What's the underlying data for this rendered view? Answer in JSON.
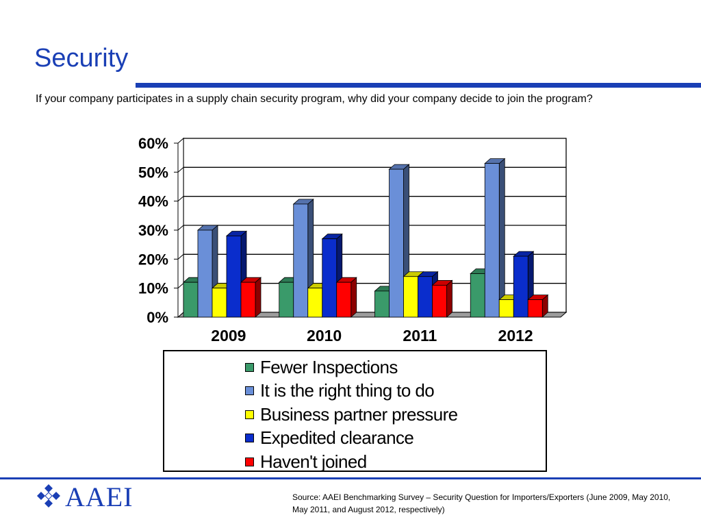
{
  "slide": {
    "title": "Security",
    "question": "If your company participates in a supply chain security program, why did your company decide to join the program?",
    "source": "Source: AAEI Benchmarking Survey – Security Question for Importers/Exporters (June 2009, May 2010, May 2011, and August 2012, respectively)",
    "logo_text": "AAEI",
    "logo_icon": "diamond-cluster-icon",
    "accent_color": "#1a3fb5"
  },
  "chart_data": {
    "type": "bar",
    "style": "3d-clustered-column",
    "categories": [
      "2009",
      "2010",
      "2011",
      "2012"
    ],
    "series": [
      {
        "name": "Fewer Inspections",
        "color": "#3a9a6a",
        "values": [
          12,
          12,
          9,
          15
        ]
      },
      {
        "name": "It is the right thing to do",
        "color": "#6a8fd8",
        "values": [
          30,
          39,
          51,
          53
        ]
      },
      {
        "name": "Business partner pressure",
        "color": "#ffff00",
        "values": [
          10,
          10,
          14,
          6
        ]
      },
      {
        "name": "Expedited clearance",
        "color": "#0a2dcc",
        "values": [
          28,
          27,
          14,
          21
        ]
      },
      {
        "name": "Haven't joined",
        "color": "#ff0000",
        "values": [
          12,
          12,
          11,
          6
        ]
      }
    ],
    "y_ticks": [
      "0%",
      "10%",
      "20%",
      "30%",
      "40%",
      "50%",
      "60%"
    ],
    "ylim": [
      0,
      60
    ],
    "grid": true,
    "legend_position": "bottom",
    "title": "",
    "xlabel": "",
    "ylabel": ""
  }
}
